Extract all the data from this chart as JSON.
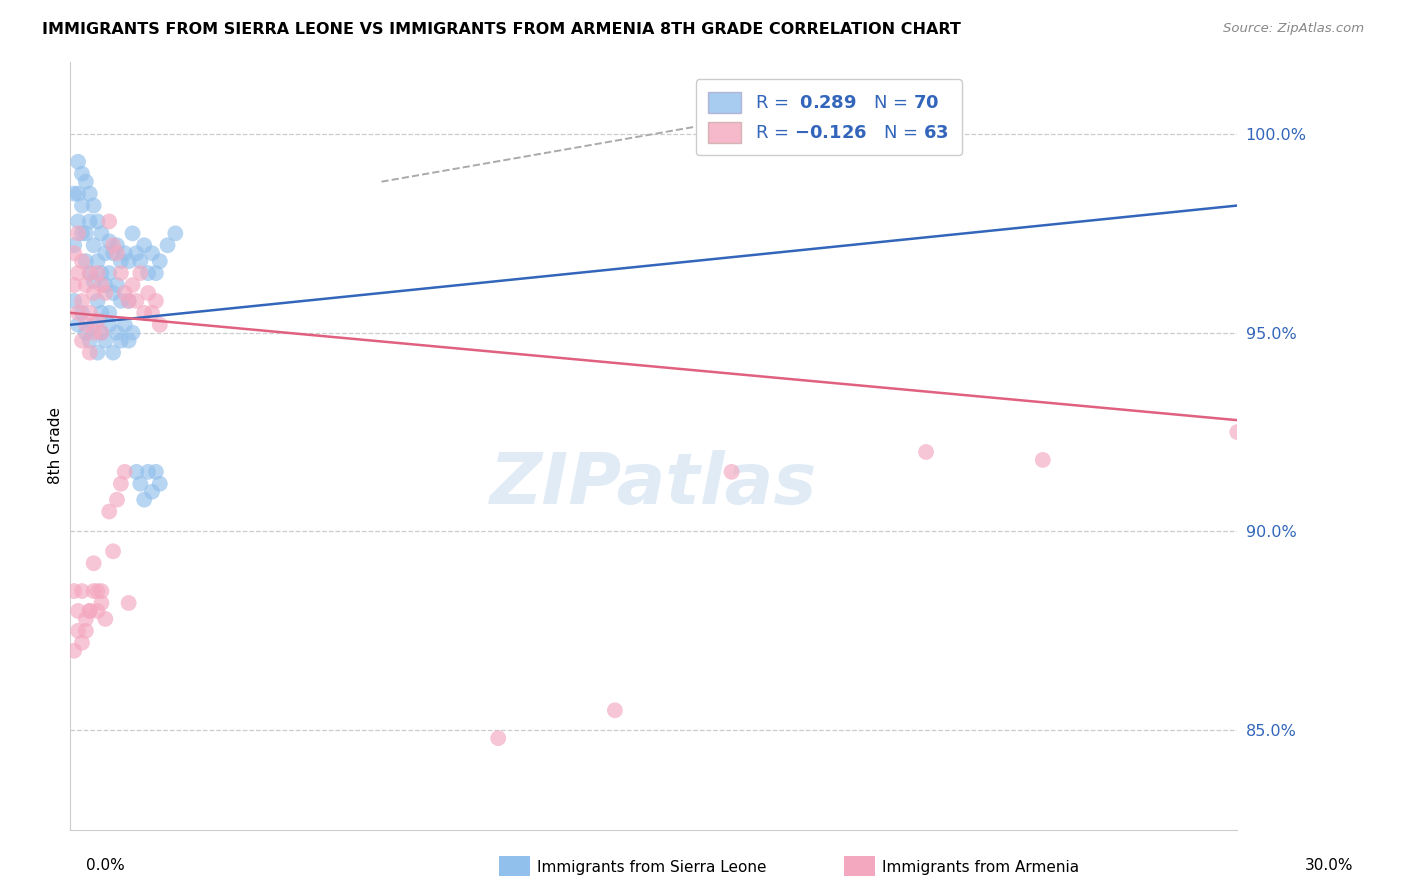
{
  "title": "IMMIGRANTS FROM SIERRA LEONE VS IMMIGRANTS FROM ARMENIA 8TH GRADE CORRELATION CHART",
  "source": "Source: ZipAtlas.com",
  "ylabel": "8th Grade",
  "ylim": [
    82.5,
    101.8
  ],
  "xlim": [
    0.0,
    0.3
  ],
  "y_tick_positions": [
    85.0,
    90.0,
    95.0,
    100.0
  ],
  "y_tick_labels": [
    "85.0%",
    "90.0%",
    "95.0%",
    "100.0%"
  ],
  "blue_color": "#92C0EC",
  "pink_color": "#F4A8C0",
  "blue_line_color": "#3366BB",
  "pink_line_color": "#E06080",
  "dash_color": "#AAAAAA",
  "grid_color": "#CCCCCC",
  "watermark_color": "#C8DCF0",
  "sl_R": 0.289,
  "sl_N": 70,
  "arm_R": -0.126,
  "arm_N": 63,
  "blue_line_x": [
    0.0,
    0.3
  ],
  "blue_line_y": [
    95.2,
    98.2
  ],
  "dash_line_x": [
    0.08,
    0.22
  ],
  "dash_line_y": [
    98.8,
    101.2
  ],
  "pink_line_x": [
    0.0,
    0.3
  ],
  "pink_line_y": [
    95.5,
    92.8
  ],
  "sl_x": [
    0.001,
    0.001,
    0.002,
    0.002,
    0.002,
    0.003,
    0.003,
    0.003,
    0.004,
    0.004,
    0.004,
    0.005,
    0.005,
    0.005,
    0.006,
    0.006,
    0.006,
    0.007,
    0.007,
    0.007,
    0.008,
    0.008,
    0.008,
    0.009,
    0.009,
    0.01,
    0.01,
    0.01,
    0.011,
    0.011,
    0.012,
    0.012,
    0.013,
    0.013,
    0.014,
    0.015,
    0.015,
    0.016,
    0.017,
    0.018,
    0.019,
    0.02,
    0.021,
    0.022,
    0.023,
    0.025,
    0.027,
    0.001,
    0.002,
    0.003,
    0.004,
    0.005,
    0.006,
    0.007,
    0.008,
    0.009,
    0.01,
    0.011,
    0.012,
    0.013,
    0.014,
    0.015,
    0.016,
    0.017,
    0.018,
    0.019,
    0.02,
    0.021,
    0.022,
    0.023
  ],
  "sl_y": [
    98.5,
    97.2,
    99.3,
    98.5,
    97.8,
    99.0,
    98.2,
    97.5,
    98.8,
    97.5,
    96.8,
    98.5,
    97.8,
    96.5,
    98.2,
    97.2,
    96.3,
    97.8,
    96.8,
    95.8,
    97.5,
    96.5,
    95.5,
    97.0,
    96.2,
    97.3,
    96.5,
    95.5,
    97.0,
    96.0,
    97.2,
    96.2,
    96.8,
    95.8,
    97.0,
    96.8,
    95.8,
    97.5,
    97.0,
    96.8,
    97.2,
    96.5,
    97.0,
    96.5,
    96.8,
    97.2,
    97.5,
    95.8,
    95.2,
    95.5,
    95.0,
    94.8,
    95.2,
    94.5,
    95.0,
    94.8,
    95.2,
    94.5,
    95.0,
    94.8,
    95.2,
    94.8,
    95.0,
    91.5,
    91.2,
    90.8,
    91.5,
    91.0,
    91.5,
    91.2
  ],
  "arm_x": [
    0.001,
    0.001,
    0.002,
    0.002,
    0.002,
    0.003,
    0.003,
    0.003,
    0.004,
    0.004,
    0.005,
    0.005,
    0.005,
    0.006,
    0.006,
    0.007,
    0.007,
    0.008,
    0.008,
    0.009,
    0.01,
    0.011,
    0.012,
    0.013,
    0.014,
    0.015,
    0.016,
    0.017,
    0.018,
    0.019,
    0.02,
    0.021,
    0.022,
    0.023,
    0.001,
    0.002,
    0.003,
    0.004,
    0.005,
    0.006,
    0.007,
    0.008,
    0.009,
    0.01,
    0.011,
    0.012,
    0.013,
    0.014,
    0.015,
    0.001,
    0.002,
    0.003,
    0.004,
    0.005,
    0.006,
    0.007,
    0.008,
    0.25,
    0.22,
    0.3,
    0.17,
    0.14,
    0.11
  ],
  "arm_y": [
    97.0,
    96.2,
    97.5,
    96.5,
    95.5,
    96.8,
    95.8,
    94.8,
    96.2,
    95.2,
    96.5,
    95.5,
    94.5,
    96.0,
    95.0,
    96.5,
    95.3,
    96.2,
    95.0,
    96.0,
    97.8,
    97.2,
    97.0,
    96.5,
    96.0,
    95.8,
    96.2,
    95.8,
    96.5,
    95.5,
    96.0,
    95.5,
    95.8,
    95.2,
    88.5,
    88.0,
    88.5,
    87.5,
    88.0,
    89.2,
    88.5,
    88.2,
    87.8,
    90.5,
    89.5,
    90.8,
    91.2,
    91.5,
    88.2,
    87.0,
    87.5,
    87.2,
    87.8,
    88.0,
    88.5,
    88.0,
    88.5,
    91.8,
    92.0,
    92.5,
    91.5,
    85.5,
    84.8
  ]
}
